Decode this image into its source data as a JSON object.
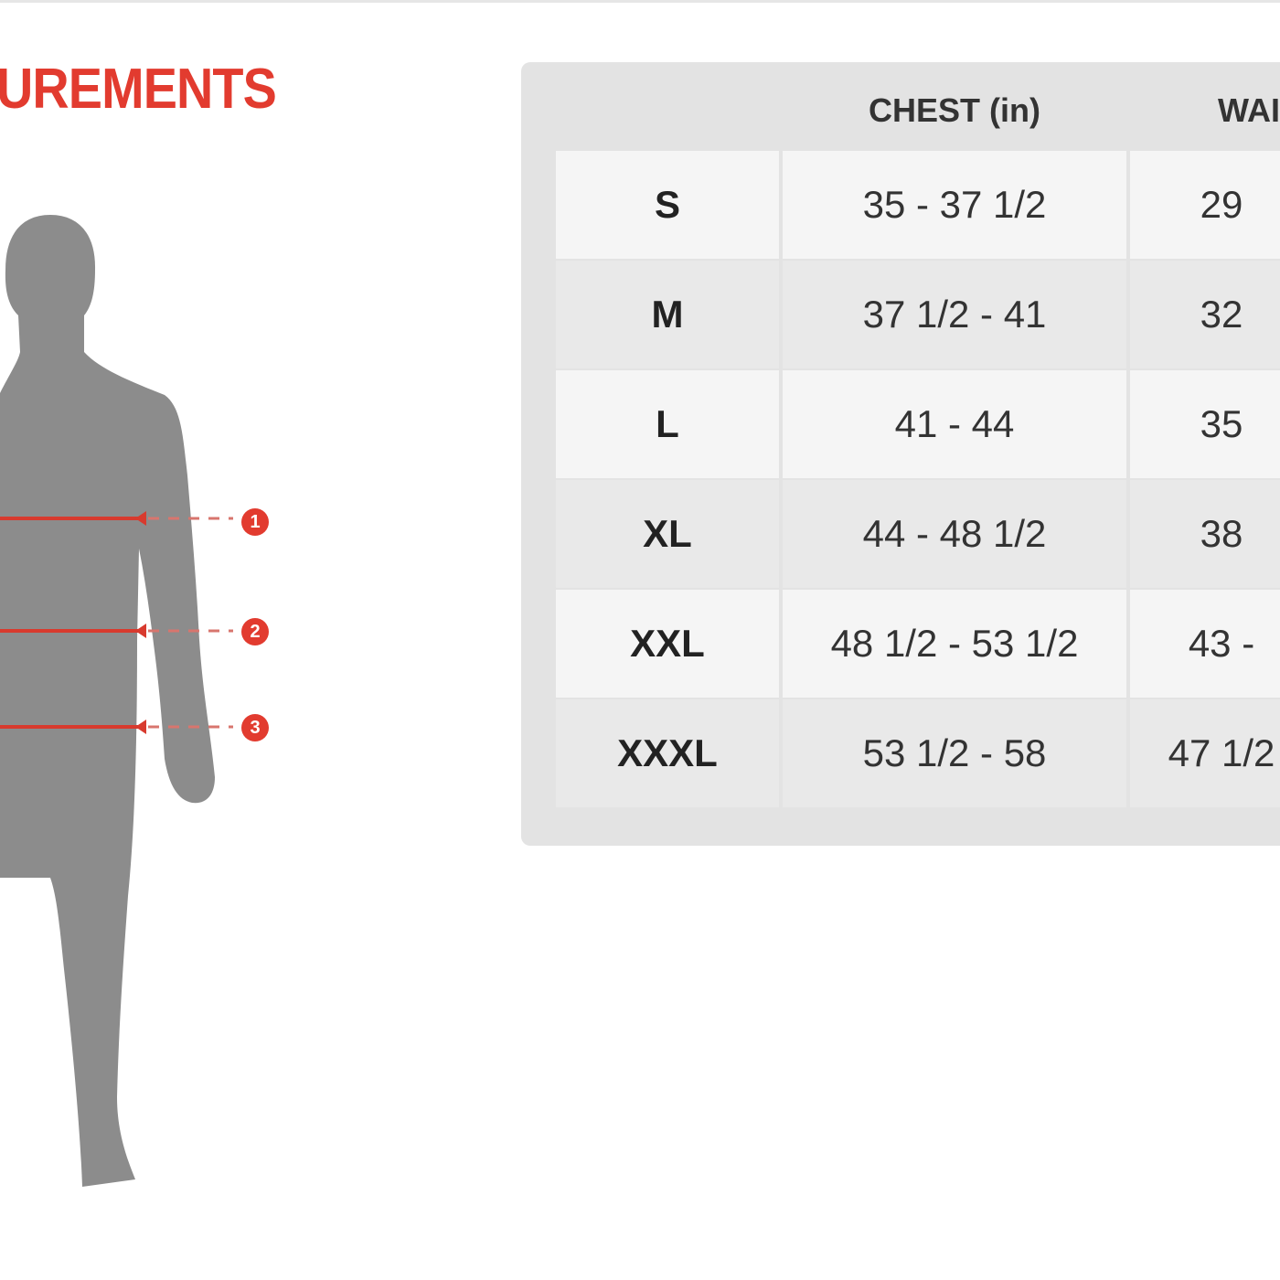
{
  "title": "UREMENTS",
  "colors": {
    "accent": "#e23b2f",
    "silhouette": "#8c8c8c",
    "panel": "#e3e3e3"
  },
  "markers": [
    {
      "label": "1"
    },
    {
      "label": "2"
    },
    {
      "label": "3"
    }
  ],
  "table": {
    "headers": [
      "",
      "CHEST (in)",
      "WAI"
    ],
    "rows": [
      {
        "size": "S",
        "chest": "35 - 37 1/2",
        "waist": "29"
      },
      {
        "size": "M",
        "chest": "37 1/2 - 41",
        "waist": "32"
      },
      {
        "size": "L",
        "chest": "41 - 44",
        "waist": "35"
      },
      {
        "size": "XL",
        "chest": "44 - 48 1/2",
        "waist": "38"
      },
      {
        "size": "XXL",
        "chest": "48 1/2 - 53 1/2",
        "waist": "43 -"
      },
      {
        "size": "XXXL",
        "chest": "53 1/2 - 58",
        "waist": "47 1/2"
      }
    ]
  }
}
